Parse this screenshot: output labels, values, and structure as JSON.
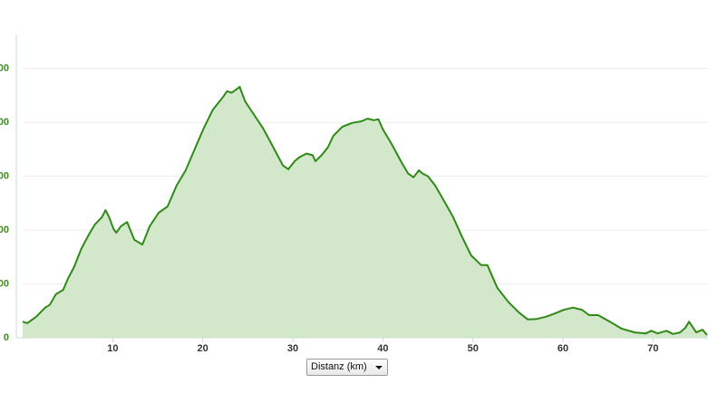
{
  "chart_data": {
    "type": "area",
    "x_label": "Distanz (km)",
    "x": [
      0,
      0.5,
      1.5,
      2.5,
      3,
      3.7,
      4.5,
      5,
      5.7,
      6.5,
      7.3,
      8,
      8.8,
      9.2,
      9.6,
      10.1,
      10.4,
      10.9,
      11.6,
      12.4,
      13.3,
      14.1,
      15.1,
      16.1,
      17.1,
      18.1,
      19.1,
      20.1,
      21.1,
      22.2,
      22.7,
      23.2,
      23.7,
      24.1,
      24.7,
      25.7,
      26.7,
      27.5,
      28.2,
      28.9,
      29.5,
      30.2,
      30.7,
      31.5,
      32.2,
      32.5,
      33.2,
      33.9,
      34.5,
      35.5,
      36.6,
      37.6,
      38.3,
      39,
      39.5,
      40,
      41,
      42,
      42.8,
      43.4,
      44,
      44.4,
      45,
      45.8,
      46.8,
      47.8,
      48.8,
      49.8,
      50.9,
      51.6,
      52.7,
      53.9,
      55.1,
      56.1,
      57.1,
      58.1,
      59.1,
      60.1,
      61.1,
      62.1,
      62.9,
      63.9,
      65.2,
      66.5,
      68,
      69.2,
      69.8,
      70.5,
      71.5,
      72.2,
      73,
      73.6,
      74,
      74.8,
      75.5,
      76
    ],
    "values": [
      30,
      27,
      39,
      56,
      61,
      81,
      89,
      109,
      131,
      165,
      190,
      210,
      224,
      237,
      224,
      202,
      195,
      207,
      215,
      182,
      173,
      207,
      232,
      244,
      283,
      311,
      350,
      389,
      423,
      446,
      458,
      455,
      461,
      466,
      439,
      414,
      389,
      364,
      342,
      320,
      313,
      328,
      335,
      342,
      339,
      328,
      339,
      354,
      375,
      392,
      399,
      402,
      407,
      404,
      406,
      387,
      359,
      328,
      305,
      298,
      311,
      305,
      300,
      283,
      254,
      224,
      187,
      153,
      135,
      135,
      93,
      67,
      47,
      34,
      35,
      39,
      45,
      52,
      56,
      52,
      42,
      42,
      30,
      17,
      10,
      8,
      13,
      8,
      13,
      7,
      10,
      19,
      30,
      10,
      15,
      5
    ],
    "color": "#2f8a17",
    "fill_color": "#d3e7cb",
    "xlim": [
      0,
      76
    ],
    "xticks": [
      10,
      20,
      30,
      40,
      50,
      60,
      70
    ],
    "ylim": [
      0,
      560
    ],
    "yticks": [
      0,
      {
        "value": 100,
        "label": "00"
      },
      {
        "value": 200,
        "label": "00"
      },
      {
        "value": 300,
        "label": "00"
      },
      {
        "value": 400,
        "label": "00"
      },
      {
        "value": 500,
        "label": "00"
      }
    ],
    "grid": true
  }
}
